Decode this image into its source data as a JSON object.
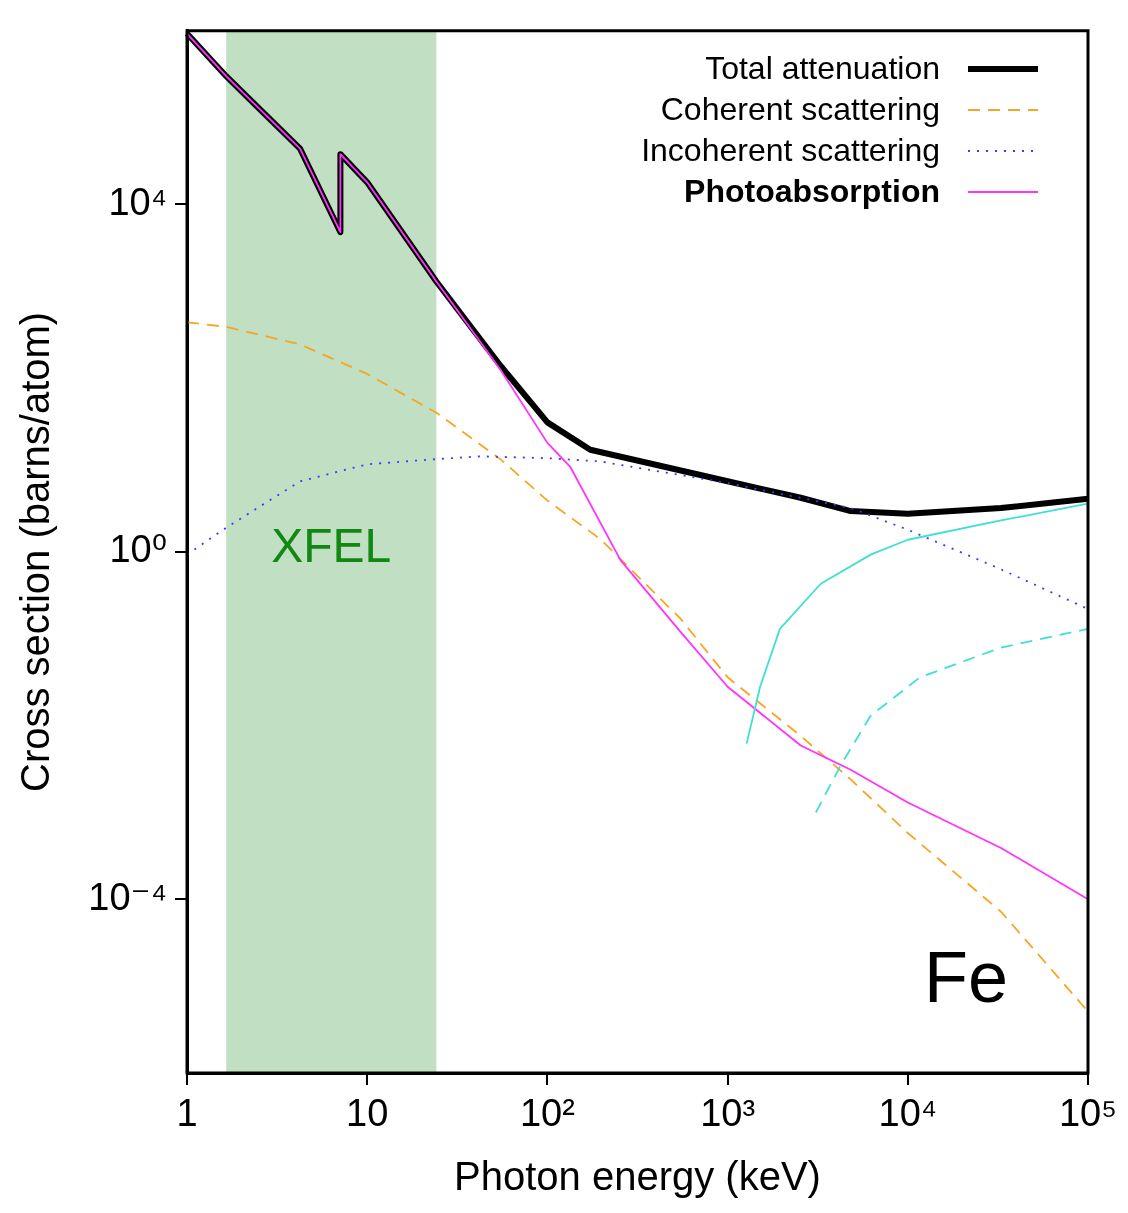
{
  "chart_data": {
    "type": "line",
    "xlabel": "Photon energy (keV)",
    "ylabel": "Cross section (barns/atom)",
    "log": "xy",
    "grid": false,
    "legend": "top right",
    "marker": "none",
    "xlim": [
      1,
      100000
    ],
    "xticks": [
      1,
      10,
      {
        "value": 100,
        "label": "10²"
      },
      {
        "value": 1000,
        "label": "10³"
      },
      {
        "value": 10000,
        "label": "10⁴"
      },
      {
        "value": 100000,
        "label": "10⁵"
      }
    ],
    "ylim": [
      1e-06,
      1000000
    ],
    "yticks": [
      {
        "value": 0.0001,
        "label": "10⁻⁴"
      },
      {
        "value": 1,
        "label": "10⁰"
      },
      {
        "value": 10000,
        "label": "10⁴"
      }
    ],
    "bands": [
      {
        "axis": "x",
        "from": 1.65,
        "to": 24.2,
        "label": "XFEL",
        "color": "#c1dfc3"
      }
    ],
    "annotations": [
      "Fe"
    ],
    "series": [
      {
        "name": "Total attenuation",
        "color": "#000000",
        "line_style": "solid",
        "x": [
          1,
          1.65,
          4.24,
          7.1,
          7.1,
          10,
          24.2,
          54.8,
          100,
          173,
          1000,
          2545,
          4820,
          10000,
          32900,
          100000
        ],
        "values": [
          930000,
          300000,
          44000,
          4800,
          38000,
          18000,
          1300,
          140,
          31,
          15,
          6.5,
          4.2,
          2.95,
          2.75,
          3.2,
          4.1
        ]
      },
      {
        "name": "Coherent scattering",
        "color": "#f5a623",
        "line_style": "dashed",
        "x": [
          1,
          1.65,
          4.24,
          10,
          24.2,
          54.8,
          100,
          197,
          548,
          1000,
          2545,
          4820,
          10000,
          32900,
          100000
        ],
        "values": [
          440,
          390,
          245,
          112,
          40,
          11.7,
          3.9,
          1.4,
          0.17,
          0.036,
          0.0076,
          0.0024,
          0.00058,
          7.2e-05,
          5.1e-06
        ]
      },
      {
        "name": "Incoherent scattering",
        "color": "#3a3aff",
        "line_style": "dotted",
        "x": [
          1,
          1.65,
          4.24,
          10,
          24.2,
          42.4,
          100,
          197,
          1000,
          4820,
          10000,
          32900,
          100000
        ],
        "values": [
          0.93,
          1.9,
          6.5,
          10.2,
          11.7,
          12.6,
          12,
          11,
          6.2,
          3.2,
          1.8,
          0.63,
          0.22
        ]
      },
      {
        "name": "Photoabsorption",
        "color": "#ff33ff",
        "line_style": "solid",
        "x": [
          1,
          1.65,
          4.24,
          7.1,
          7.1,
          10,
          24.2,
          54.8,
          100,
          134,
          255,
          548,
          1000,
          2545,
          4820,
          10000,
          32900,
          100000
        ],
        "values": [
          930000,
          300000,
          44000,
          4800,
          38000,
          18000,
          1300,
          126,
          18,
          9.5,
          0.8,
          0.12,
          0.028,
          0.0059,
          0.0031,
          0.0013,
          0.00039,
          0.0001
        ]
      },
      {
        "color": "#40e0d0",
        "line_style": "solid",
        "x": [
          1275,
          1515,
          1950,
          3290,
          6220,
          10000,
          32900,
          100000
        ],
        "values": [
          0.0062,
          0.028,
          0.13,
          0.43,
          0.93,
          1.38,
          2.3,
          3.6
        ]
      },
      {
        "color": "#40e0d0",
        "line_style": "dashed",
        "x": [
          3090,
          4245,
          6220,
          11700,
          32900,
          100000
        ],
        "values": [
          0.001,
          0.0035,
          0.013,
          0.036,
          0.079,
          0.13
        ]
      }
    ]
  }
}
